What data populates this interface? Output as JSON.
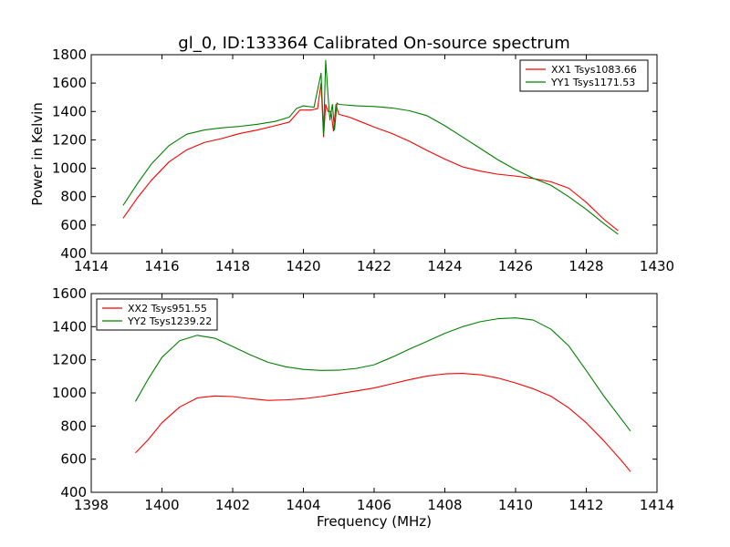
{
  "chart_data": [
    {
      "type": "line",
      "title": "gl_0, ID:133364 Calibrated On-source spectrum",
      "xlabel": "",
      "ylabel": "Power in Kelvin",
      "xlim": [
        1414,
        1430
      ],
      "ylim": [
        400,
        1800
      ],
      "xticks": [
        "1414",
        "1416",
        "1418",
        "1420",
        "1422",
        "1424",
        "1426",
        "1428",
        "1430"
      ],
      "yticks": [
        "400",
        "600",
        "800",
        "1000",
        "1200",
        "1400",
        "1600",
        "1800"
      ],
      "legend_position": "top-right",
      "series": [
        {
          "name": "XX1 Tsys1083.66",
          "color": "#ff0000",
          "x": [
            1414.9,
            1415.3,
            1415.7,
            1416.2,
            1416.7,
            1417.2,
            1417.7,
            1418.2,
            1418.7,
            1419.2,
            1419.6,
            1419.9,
            1420.2,
            1420.4,
            1420.5,
            1420.57,
            1420.63,
            1420.7,
            1420.78,
            1420.85,
            1420.92,
            1421.0,
            1421.3,
            1421.6,
            1422.0,
            1422.5,
            1423.0,
            1423.5,
            1424.0,
            1424.5,
            1425.0,
            1425.5,
            1426.0,
            1426.5,
            1427.0,
            1427.5,
            1428.0,
            1428.5,
            1428.9
          ],
          "values": [
            648,
            790,
            915,
            1045,
            1130,
            1182,
            1210,
            1245,
            1270,
            1300,
            1325,
            1410,
            1410,
            1420,
            1600,
            1222,
            1450,
            1400,
            1400,
            1262,
            1450,
            1380,
            1360,
            1330,
            1290,
            1245,
            1190,
            1125,
            1065,
            1010,
            980,
            958,
            945,
            928,
            905,
            860,
            760,
            640,
            560
          ]
        },
        {
          "name": "YY1 Tsys1171.53",
          "color": "#008000",
          "x": [
            1414.9,
            1415.3,
            1415.7,
            1416.2,
            1416.7,
            1417.2,
            1417.7,
            1418.2,
            1418.7,
            1419.2,
            1419.6,
            1419.8,
            1420.0,
            1420.3,
            1420.5,
            1420.57,
            1420.63,
            1420.7,
            1420.75,
            1420.82,
            1420.88,
            1420.95,
            1421.0,
            1421.5,
            1422.0,
            1422.5,
            1423.0,
            1423.5,
            1424.0,
            1424.5,
            1425.0,
            1425.5,
            1426.0,
            1426.5,
            1427.0,
            1427.5,
            1428.0,
            1428.5,
            1428.9
          ],
          "values": [
            738,
            890,
            1030,
            1160,
            1240,
            1270,
            1285,
            1295,
            1310,
            1330,
            1360,
            1420,
            1440,
            1430,
            1670,
            1240,
            1760,
            1500,
            1340,
            1450,
            1270,
            1460,
            1450,
            1440,
            1435,
            1425,
            1405,
            1370,
            1300,
            1220,
            1140,
            1060,
            990,
            930,
            880,
            800,
            710,
            610,
            535
          ]
        }
      ]
    },
    {
      "type": "line",
      "title": "",
      "xlabel": "Frequency (MHz)",
      "ylabel": "",
      "xlim": [
        1398,
        1414
      ],
      "ylim": [
        400,
        1600
      ],
      "xticks": [
        "1398",
        "1400",
        "1402",
        "1404",
        "1406",
        "1408",
        "1410",
        "1412",
        "1414"
      ],
      "yticks": [
        "400",
        "600",
        "800",
        "1000",
        "1200",
        "1400",
        "1600"
      ],
      "legend_position": "top-left",
      "series": [
        {
          "name": "XX2 Tsys951.55",
          "color": "#ff0000",
          "x": [
            1399.25,
            1399.6,
            1400.0,
            1400.5,
            1401.0,
            1401.5,
            1402.0,
            1402.5,
            1403.0,
            1403.5,
            1404.0,
            1404.5,
            1405.0,
            1405.5,
            1406.0,
            1406.5,
            1407.0,
            1407.5,
            1408.0,
            1408.5,
            1409.0,
            1409.5,
            1410.0,
            1410.5,
            1411.0,
            1411.5,
            1412.0,
            1412.5,
            1413.0,
            1413.25
          ],
          "values": [
            638,
            715,
            820,
            915,
            970,
            982,
            978,
            965,
            955,
            958,
            965,
            978,
            995,
            1012,
            1030,
            1055,
            1080,
            1102,
            1115,
            1118,
            1110,
            1090,
            1060,
            1025,
            980,
            910,
            820,
            710,
            590,
            525
          ]
        },
        {
          "name": "YY2 Tsys1239.22",
          "color": "#008000",
          "x": [
            1399.25,
            1399.6,
            1400.0,
            1400.5,
            1401.0,
            1401.5,
            1402.0,
            1402.5,
            1403.0,
            1403.5,
            1404.0,
            1404.5,
            1405.0,
            1405.5,
            1406.0,
            1406.5,
            1407.0,
            1407.5,
            1408.0,
            1408.5,
            1409.0,
            1409.5,
            1410.0,
            1410.5,
            1411.0,
            1411.5,
            1412.0,
            1412.5,
            1413.0,
            1413.25
          ],
          "values": [
            948,
            1080,
            1215,
            1315,
            1348,
            1330,
            1280,
            1230,
            1185,
            1158,
            1142,
            1136,
            1137,
            1148,
            1170,
            1215,
            1265,
            1312,
            1360,
            1400,
            1430,
            1448,
            1453,
            1440,
            1385,
            1285,
            1135,
            980,
            840,
            770
          ]
        }
      ]
    }
  ]
}
